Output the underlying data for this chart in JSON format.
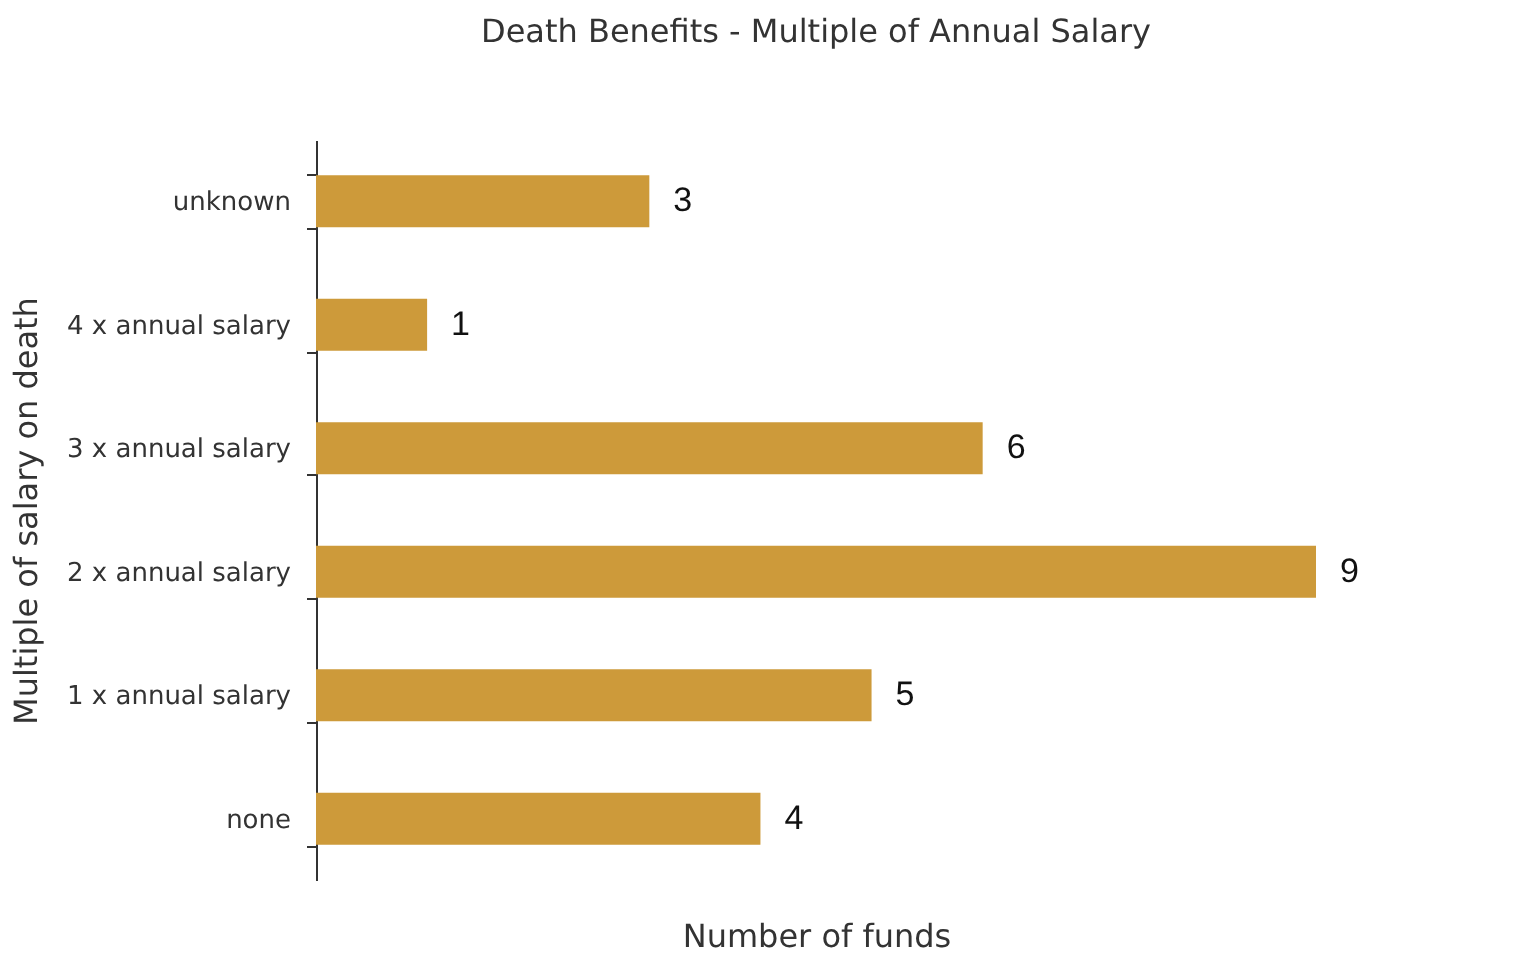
{
  "chart_data": {
    "type": "bar",
    "orientation": "horizontal",
    "title": "Death Benefits - Multiple of Annual Salary",
    "xlabel": "Number of funds",
    "ylabel": "Multiple of salary on death",
    "categories": [
      "unknown",
      "4 x annual salary",
      "3 x annual salary",
      "2 x annual salary",
      "1 x annual salary",
      "none"
    ],
    "values": [
      3,
      1,
      6,
      9,
      5,
      4
    ],
    "color": "#cd9a3a",
    "data_labels": true,
    "grid": false,
    "tick_labels": "y"
  }
}
